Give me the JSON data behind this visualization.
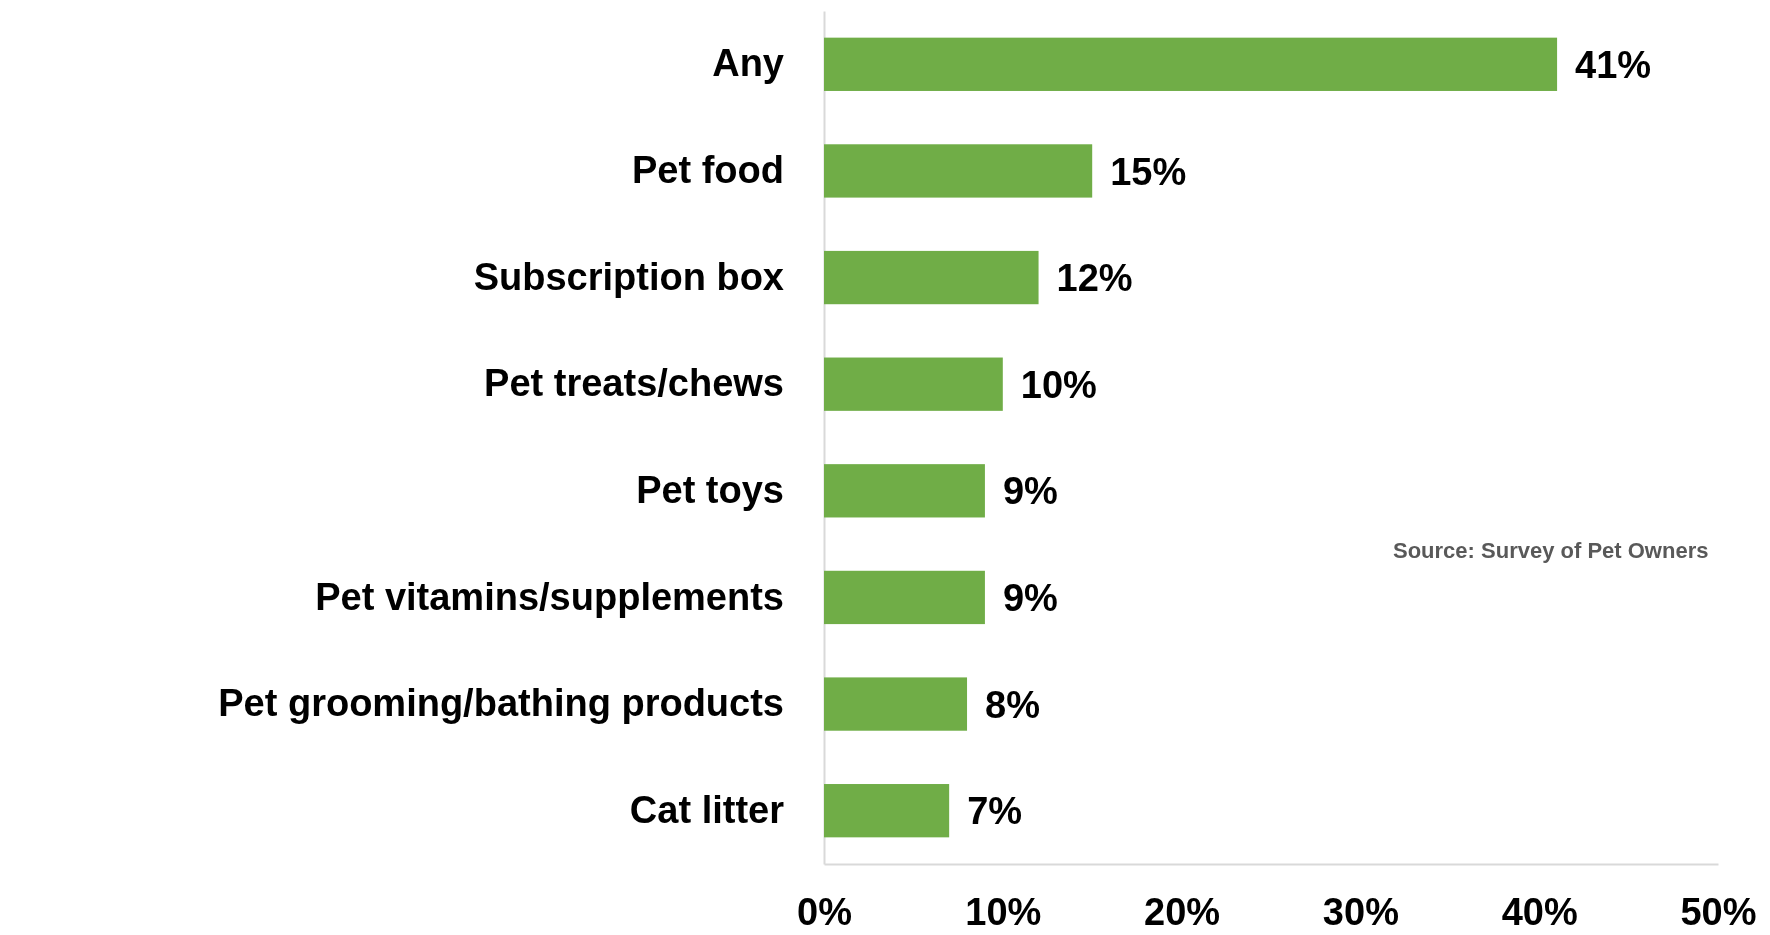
{
  "chart_data": {
    "type": "bar",
    "orientation": "horizontal",
    "categories": [
      "Any",
      "Pet food",
      "Subscription box",
      "Pet treats/chews",
      "Pet toys",
      "Pet vitamins/supplements",
      "Pet grooming/bathing products",
      "Cat litter"
    ],
    "values": [
      41,
      15,
      12,
      10,
      9,
      9,
      8,
      7
    ],
    "value_labels": [
      "41%",
      "15%",
      "12%",
      "10%",
      "9%",
      "9%",
      "8%",
      "7%"
    ],
    "color": "#70ad47",
    "xlim": [
      0,
      50
    ],
    "xticks": [
      {
        "value": 0,
        "label": "0%"
      },
      {
        "value": 10,
        "label": "10%"
      },
      {
        "value": 20,
        "label": "20%"
      },
      {
        "value": 30,
        "label": "30%"
      },
      {
        "value": 40,
        "label": "40%"
      },
      {
        "value": 50,
        "label": "50%"
      }
    ],
    "grid": false,
    "annotations": [
      "Source: Survey of Pet Owners"
    ]
  }
}
